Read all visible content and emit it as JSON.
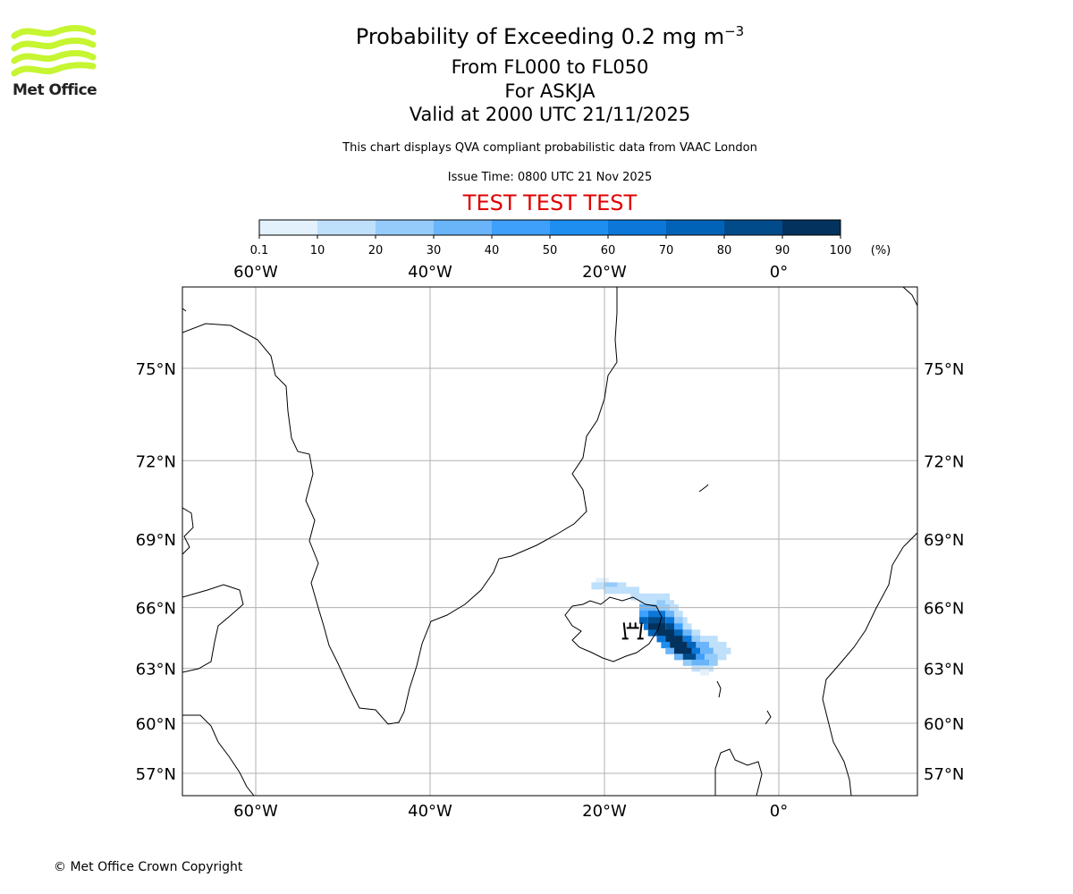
{
  "header": {
    "logo_text": "Met Office",
    "title_main": "Probability of Exceeding 0.2 mg m",
    "title_sup": "−3",
    "flight_levels": "From FL000 to FL050",
    "volcano": "For ASKJA",
    "valid": "Valid at 2000 UTC 21/11/2025",
    "note": "This chart displays QVA compliant probabilistic data from VAAC London",
    "issue": "Issue Time: 0800 UTC 21 Nov 2025",
    "test_banner": "TEST TEST TEST"
  },
  "footer": {
    "copyright": "© Met Office Crown Copyright"
  },
  "colors": {
    "test": "#e00000",
    "grid": "#b0b0b0"
  },
  "chart_data": {
    "type": "heatmap",
    "projection": "mercator",
    "extent": {
      "lon": [
        -68.4,
        15.9
      ],
      "lat": [
        55.4,
        77.8
      ]
    },
    "colorbar": {
      "ticks": [
        "0.1",
        "10",
        "20",
        "30",
        "40",
        "50",
        "60",
        "70",
        "80",
        "90",
        "100"
      ],
      "unit": "(%)",
      "colors": [
        "#e3f1fd",
        "#bfe0fb",
        "#95cbfa",
        "#6ab4f9",
        "#3ea0fb",
        "#1e8ef0",
        "#0c77d9",
        "#0063b8",
        "#024b8b",
        "#03325e"
      ]
    },
    "lon_ticks": [
      {
        "value": -60,
        "label": "60°W"
      },
      {
        "value": -40,
        "label": "40°W"
      },
      {
        "value": -20,
        "label": "20°W"
      },
      {
        "value": 0,
        "label": "0°"
      }
    ],
    "lat_ticks": [
      {
        "value": 75,
        "label": "75°N"
      },
      {
        "value": 72,
        "label": "72°N"
      },
      {
        "value": 69,
        "label": "69°N"
      },
      {
        "value": 66,
        "label": "66°N"
      },
      {
        "value": 63,
        "label": "63°N"
      },
      {
        "value": 60,
        "label": "60°N"
      },
      {
        "value": 57,
        "label": "57°N"
      }
    ],
    "grid": true,
    "volcano": {
      "name": "ASKJA",
      "lon": -16.75,
      "lat": 65.03
    },
    "plume_strips_lat_lon_from_lon_to_prob": [
      [
        67.2,
        -21,
        -19.5,
        5
      ],
      [
        67.0,
        -21.5,
        -20,
        10
      ],
      [
        67.0,
        -20,
        -18.5,
        25
      ],
      [
        67.0,
        -18.5,
        -17.5,
        10
      ],
      [
        66.8,
        -20,
        -16,
        10
      ],
      [
        66.5,
        -17,
        -12.5,
        10
      ],
      [
        66.2,
        -16,
        -14,
        10
      ],
      [
        66.2,
        -14,
        -13,
        20
      ],
      [
        66.2,
        -13,
        -12,
        10
      ],
      [
        66.0,
        -16,
        -14,
        30
      ],
      [
        66.0,
        -14,
        -12.5,
        20
      ],
      [
        66.0,
        -12.5,
        -11.5,
        10
      ],
      [
        65.7,
        -16,
        -15,
        40
      ],
      [
        65.7,
        -15,
        -13,
        60
      ],
      [
        65.7,
        -13,
        -12,
        30
      ],
      [
        65.7,
        -12,
        -11,
        10
      ],
      [
        65.4,
        -16,
        -15,
        70
      ],
      [
        65.4,
        -15,
        -13,
        80
      ],
      [
        65.4,
        -13,
        -12,
        60
      ],
      [
        65.4,
        -12,
        -11,
        20
      ],
      [
        65.4,
        -11,
        -10.5,
        10
      ],
      [
        65.1,
        -15.5,
        -15,
        60
      ],
      [
        65.1,
        -15,
        -13,
        95
      ],
      [
        65.1,
        -13,
        -12,
        80
      ],
      [
        65.1,
        -12,
        -11,
        40
      ],
      [
        65.1,
        -11,
        -10,
        10
      ],
      [
        64.8,
        -15,
        -14,
        70
      ],
      [
        64.8,
        -14,
        -12,
        95
      ],
      [
        64.8,
        -12,
        -11,
        70
      ],
      [
        64.8,
        -11,
        -10,
        30
      ],
      [
        64.8,
        -10,
        -9,
        10
      ],
      [
        64.5,
        -14,
        -13,
        60
      ],
      [
        64.5,
        -13,
        -11,
        95
      ],
      [
        64.5,
        -11,
        -10,
        60
      ],
      [
        64.5,
        -10,
        -9,
        20
      ],
      [
        64.5,
        -9,
        -7,
        10
      ],
      [
        64.2,
        -13.5,
        -12.5,
        50
      ],
      [
        64.2,
        -12.5,
        -10.5,
        95
      ],
      [
        64.2,
        -10.5,
        -9.5,
        70
      ],
      [
        64.2,
        -9.5,
        -8,
        30
      ],
      [
        64.2,
        -8,
        -6,
        10
      ],
      [
        63.9,
        -13,
        -12,
        30
      ],
      [
        63.9,
        -12,
        -10,
        90
      ],
      [
        63.9,
        -10,
        -9,
        60
      ],
      [
        63.9,
        -9,
        -7.5,
        30
      ],
      [
        63.9,
        -7.5,
        -5.5,
        15
      ],
      [
        63.6,
        -12,
        -11,
        30
      ],
      [
        63.6,
        -11,
        -9.5,
        80
      ],
      [
        63.6,
        -9.5,
        -8.5,
        40
      ],
      [
        63.6,
        -8.5,
        -7,
        25
      ],
      [
        63.6,
        -7,
        -6,
        10
      ],
      [
        63.3,
        -11,
        -10,
        20
      ],
      [
        63.3,
        -10,
        -8,
        30
      ],
      [
        63.3,
        -8,
        -7,
        20
      ],
      [
        63.0,
        -10,
        -7.5,
        10
      ],
      [
        62.8,
        -9,
        -8,
        5
      ]
    ]
  }
}
